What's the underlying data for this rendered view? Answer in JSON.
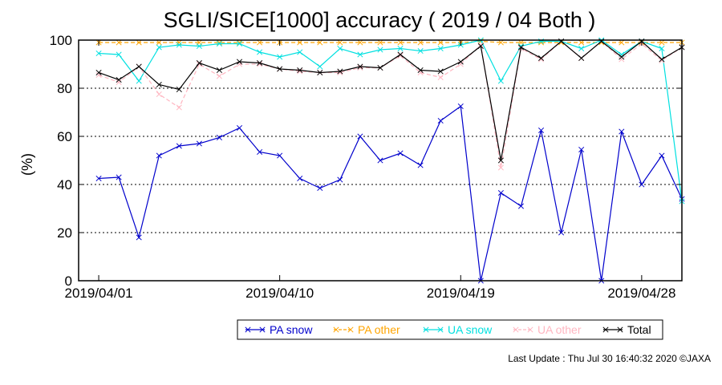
{
  "chart_data": {
    "type": "line",
    "title": "SGLI/SICE[1000] accuracy ( 2019 / 04 Both )",
    "xlabel": "",
    "ylabel": "(%)",
    "ylim": [
      0,
      100
    ],
    "yticks": [
      0,
      20,
      40,
      60,
      80,
      100
    ],
    "xlim": [
      "2019/03/31",
      "2019/04/30"
    ],
    "xtick_labels": [
      "2019/04/01",
      "2019/04/10",
      "2019/04/19",
      "2019/04/28"
    ],
    "xtick_days": [
      1,
      10,
      19,
      28
    ],
    "grid": "horizontal dotted",
    "legend_position": "bottom",
    "days": [
      1,
      2,
      3,
      4,
      5,
      6,
      7,
      8,
      9,
      10,
      11,
      12,
      13,
      14,
      15,
      16,
      17,
      18,
      19,
      20,
      21,
      22,
      23,
      24,
      25,
      26,
      27,
      28,
      29,
      30
    ],
    "series": [
      {
        "name": "PA snow",
        "color": "#0000cc",
        "values": [
          42.5,
          43,
          18,
          52,
          56,
          57,
          59.5,
          63.5,
          53.5,
          52,
          42.5,
          38.5,
          42,
          60,
          50,
          53,
          48,
          66.5,
          72.5,
          0,
          36.5,
          31,
          62.5,
          20,
          54.5,
          0,
          62,
          40,
          52,
          34
        ]
      },
      {
        "name": "PA other",
        "color": "#ffa500",
        "values": [
          99,
          99,
          99,
          99,
          99,
          99,
          99,
          99,
          99,
          99,
          99,
          99,
          99,
          99,
          99,
          99,
          99,
          99,
          99,
          99.5,
          99,
          99,
          99,
          99,
          99,
          99,
          99,
          99,
          99,
          99
        ]
      },
      {
        "name": "UA snow",
        "color": "#00e0e0",
        "values": [
          94.5,
          94,
          83,
          97,
          98,
          97.5,
          98.5,
          98.5,
          95,
          93,
          95,
          89,
          96.5,
          94,
          96,
          96.5,
          95.5,
          96.5,
          98,
          100,
          83,
          97.5,
          99.5,
          99.5,
          96.5,
          100,
          94,
          99.5,
          96.5,
          33
        ]
      },
      {
        "name": "UA other",
        "color": "#ffb6c1",
        "values": [
          85.5,
          82.5,
          89,
          77.5,
          72,
          90,
          85,
          90,
          90,
          88,
          87,
          86.5,
          86.5,
          88.5,
          88.5,
          93.5,
          86.5,
          84.5,
          90,
          98,
          47,
          96.5,
          92,
          99.5,
          92.5,
          99.5,
          92,
          98.5,
          91.5,
          97
        ]
      },
      {
        "name": "Total",
        "color": "#000000",
        "values": [
          86.5,
          83.5,
          89,
          81.5,
          79.5,
          90.5,
          87.5,
          91,
          90.5,
          88,
          87.5,
          86.5,
          87,
          89,
          88.5,
          94,
          87.5,
          87,
          91,
          97.5,
          50,
          97,
          92.5,
          99.5,
          92.5,
          99.5,
          93,
          99.5,
          92,
          97
        ]
      }
    ]
  },
  "footer": {
    "last_update": "Last Update : Thu Jul 30 16:40:32 2020  ©JAXA"
  }
}
